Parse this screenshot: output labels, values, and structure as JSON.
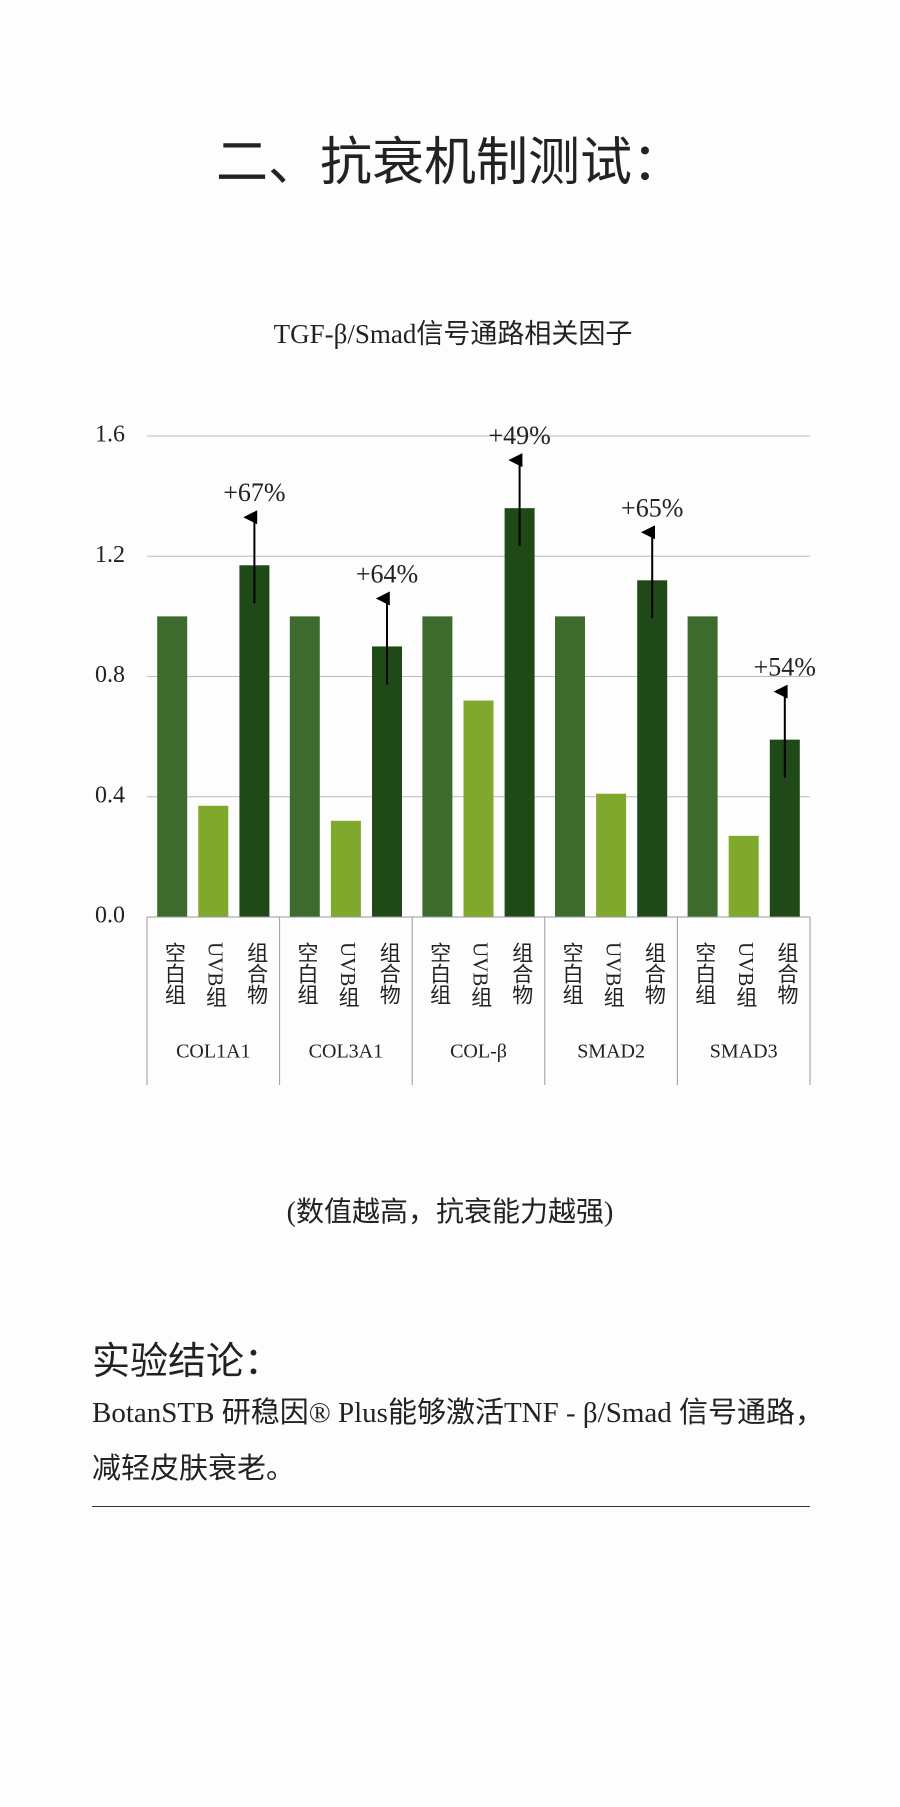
{
  "header": {
    "title": "二、抗衰机制测试："
  },
  "chart_data": {
    "type": "bar",
    "title": "TGF-β/Smad信号通路相关因子",
    "categories": [
      "COL1A1",
      "COL3A1",
      "COL-β",
      "SMAD2",
      "SMAD3"
    ],
    "series": [
      {
        "name": "空白组",
        "color": "#3d6b2e",
        "values": [
          1.0,
          1.0,
          1.0,
          1.0,
          1.0
        ]
      },
      {
        "name": "UVB组",
        "color": "#80a82d",
        "values": [
          0.37,
          0.32,
          0.72,
          0.41,
          0.27
        ]
      },
      {
        "name": "组合物",
        "color": "#1f4a17",
        "values": [
          1.17,
          0.9,
          1.36,
          1.12,
          0.59
        ]
      }
    ],
    "annotations": [
      "+67%",
      "+64%",
      "+49%",
      "+65%",
      "+54%"
    ],
    "ylim": [
      0,
      1.6
    ],
    "yticks": [
      {
        "value": 0,
        "label": "0.0"
      },
      0.4,
      0.8,
      1.2,
      {
        "value": 1.6,
        "label": "1.6"
      }
    ],
    "grid": true
  },
  "note": "(数值越高，抗衰能力越强)",
  "conclusion": {
    "heading": "实验结论：",
    "text": "BotanSTB 研稳因® Plus能够激活TNF - β/Smad 信号通路，减轻皮肤衰老。"
  }
}
